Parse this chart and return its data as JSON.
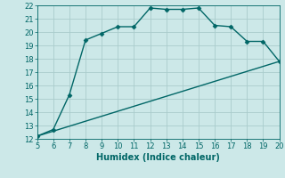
{
  "xlabel": "Humidex (Indice chaleur)",
  "ylabel": "",
  "bg_color": "#cce8e8",
  "grid_color": "#aacccc",
  "line_color": "#006666",
  "xlim": [
    5,
    20
  ],
  "ylim": [
    12,
    22
  ],
  "xticks": [
    5,
    6,
    7,
    8,
    9,
    10,
    11,
    12,
    13,
    14,
    15,
    16,
    17,
    18,
    19,
    20
  ],
  "yticks": [
    12,
    13,
    14,
    15,
    16,
    17,
    18,
    19,
    20,
    21,
    22
  ],
  "line1_x": [
    5,
    6,
    7,
    8,
    9,
    10,
    11,
    12,
    13,
    14,
    15,
    16,
    17,
    18,
    19,
    20
  ],
  "line1_y": [
    12.2,
    12.7,
    15.3,
    19.4,
    19.9,
    20.4,
    20.4,
    21.8,
    21.7,
    21.7,
    21.8,
    20.5,
    20.4,
    19.3,
    19.3,
    17.8
  ],
  "line2_x": [
    5,
    20
  ],
  "line2_y": [
    12.2,
    17.8
  ],
  "marker_size": 2.5,
  "line_width": 1.0,
  "xlabel_fontsize": 7,
  "tick_fontsize": 6
}
